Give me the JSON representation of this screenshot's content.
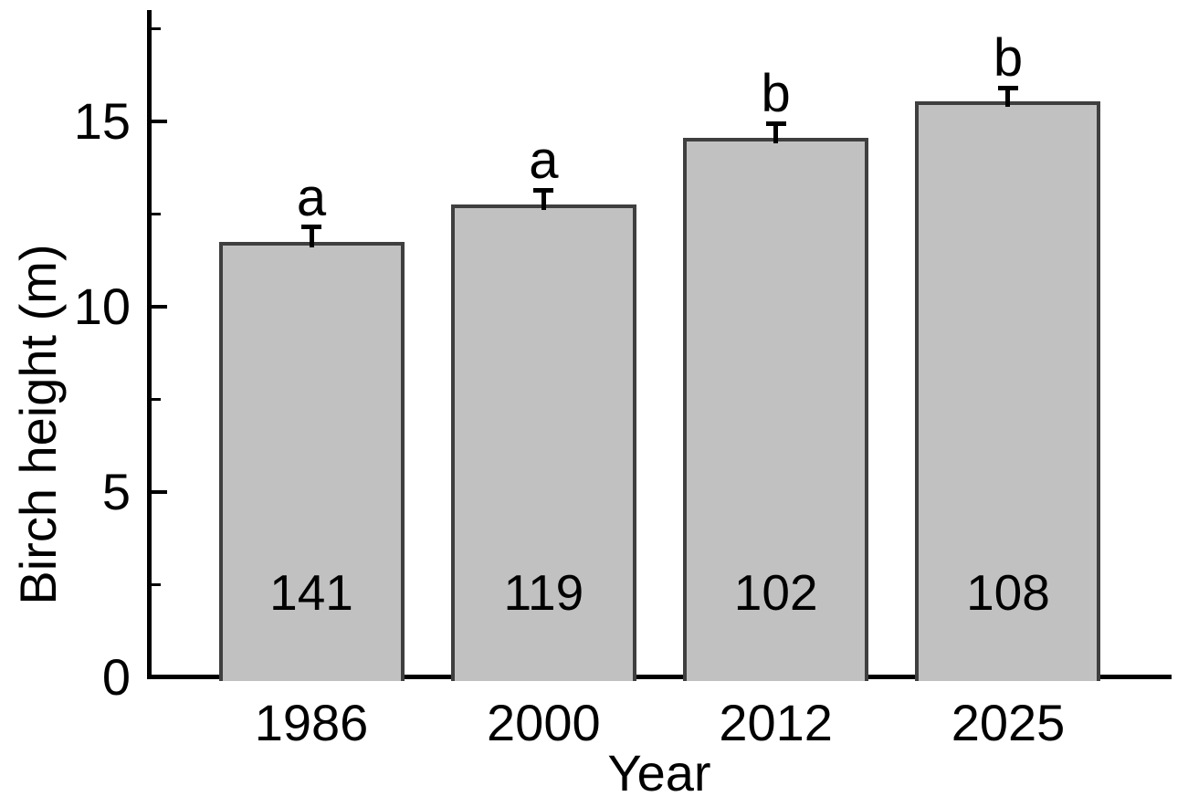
{
  "chart_data": {
    "type": "bar",
    "title": "",
    "xlabel": "Year",
    "ylabel": "Birch height (m)",
    "categories": [
      "1986",
      "2000",
      "2012",
      "2025"
    ],
    "values": [
      11.7,
      12.7,
      14.5,
      15.5
    ],
    "errors_upper": [
      0.45,
      0.45,
      0.45,
      0.4
    ],
    "bar_annotations": [
      "141",
      "119",
      "102",
      "108"
    ],
    "sig_letters": [
      "a",
      "a",
      "b",
      "b"
    ],
    "ylim": [
      0,
      18
    ],
    "yticks": [
      0,
      5,
      10,
      15
    ],
    "yticks_minor": [
      2.5,
      7.5,
      12.5,
      17.5
    ],
    "grid": false,
    "legend": null,
    "error_bars": "upper-only",
    "colors": {
      "bar_fill": "#c1c1c1",
      "bar_edge": "#3f3f3f",
      "axis": "#000000",
      "error_bar": "#000000",
      "text": "#000000",
      "background": "#ffffff"
    }
  }
}
